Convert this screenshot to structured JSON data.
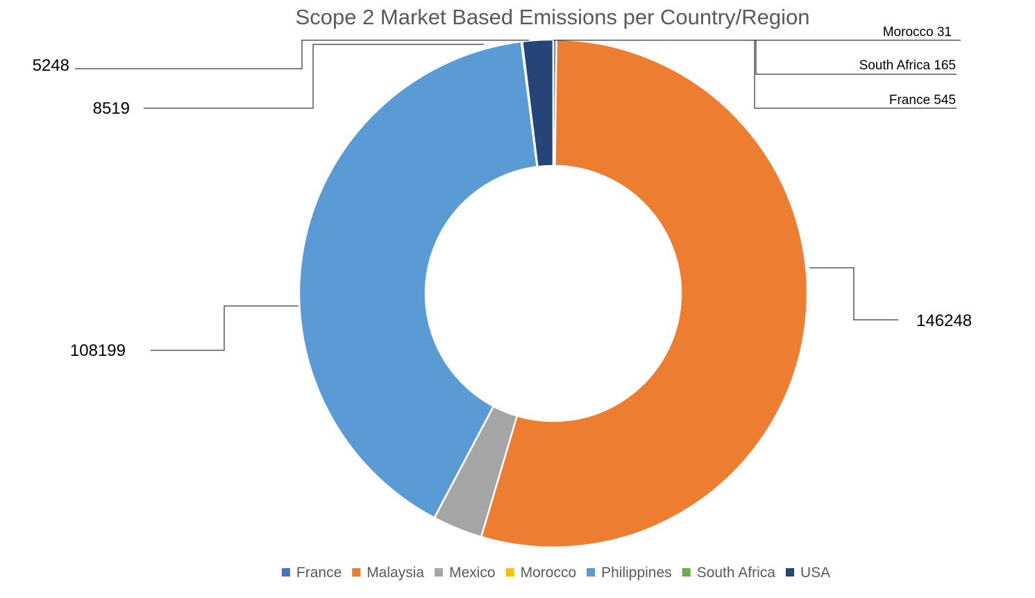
{
  "chart_data": {
    "type": "pie",
    "variant": "donut",
    "title": "Scope 2 Market Based Emissions per Country/Region",
    "legend_position": "bottom",
    "start_angle_deg": 0,
    "direction": "clockwise",
    "series": [
      {
        "name": "France",
        "value": 545,
        "color": "#4472C4",
        "label": "France 545"
      },
      {
        "name": "Malaysia",
        "value": 146248,
        "color": "#ED7D31",
        "label": "146248"
      },
      {
        "name": "Mexico",
        "value": 8519,
        "color": "#A5A5A5",
        "label": "8519"
      },
      {
        "name": "Morocco",
        "value": 31,
        "color": "#FFC000",
        "label": "Morocco 31"
      },
      {
        "name": "Philippines",
        "value": 108199,
        "color": "#5B9BD5",
        "label": "108199"
      },
      {
        "name": "South Africa",
        "value": 165,
        "color": "#70AD47",
        "label": "South Africa 165"
      },
      {
        "name": "USA",
        "value": 5248,
        "color": "#264478",
        "label": "5248"
      }
    ]
  }
}
